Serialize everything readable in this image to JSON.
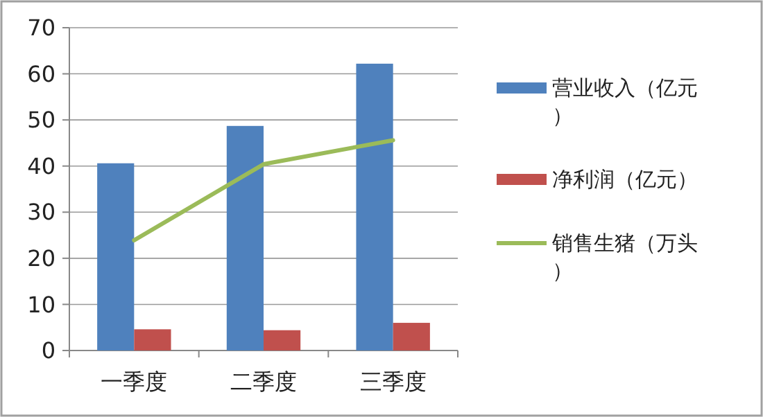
{
  "chart_data": {
    "type": "bar",
    "categories": [
      "一季度",
      "二季度",
      "三季度"
    ],
    "series": [
      {
        "name": "营业收入（亿元）",
        "color": "#4f81bd",
        "values": [
          40.6,
          48.7,
          62.2
        ]
      },
      {
        "name": "净利润（亿元）",
        "color": "#c0504d",
        "values": [
          4.6,
          4.4,
          6.0
        ]
      },
      {
        "name": "销售生猪（万头）",
        "type": "line",
        "color": "#9bbb59",
        "values": [
          23.9,
          40.4,
          45.6
        ]
      }
    ],
    "ylim": [
      0,
      70
    ],
    "yticks": [
      0,
      10,
      20,
      30,
      40,
      50,
      60,
      70
    ],
    "grid": "y",
    "legend": "right",
    "marker": "none"
  }
}
